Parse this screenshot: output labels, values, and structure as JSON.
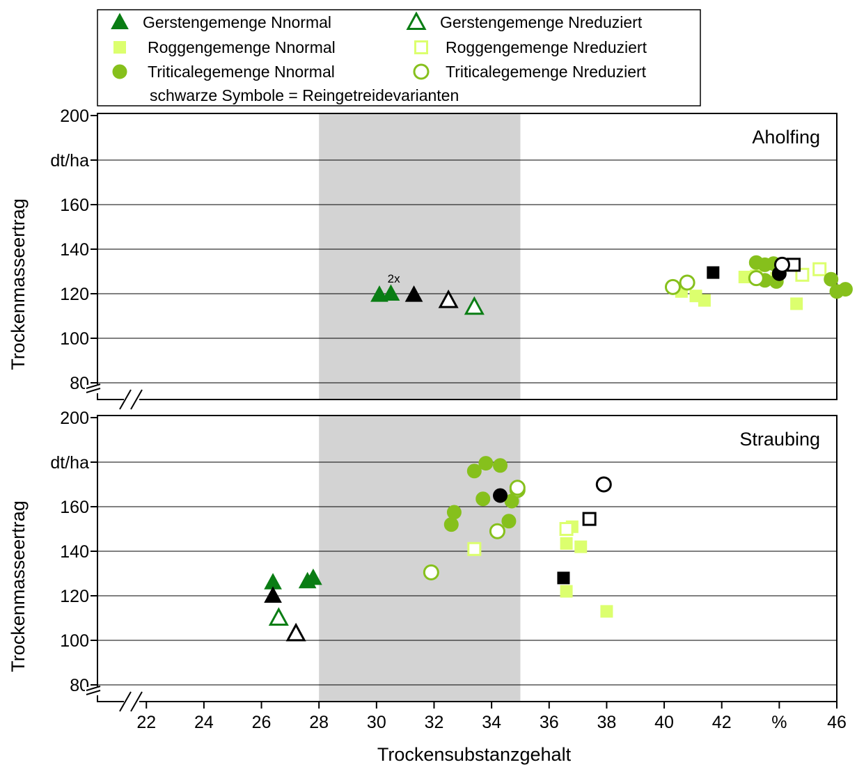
{
  "chart_data": {
    "type": "scatter",
    "xlabel": "Trockensubstanzgehalt",
    "x_unit": "%",
    "x_ticks": [
      22,
      24,
      26,
      28,
      30,
      32,
      34,
      36,
      38,
      40,
      42,
      46
    ],
    "xlim": [
      20.3,
      46
    ],
    "x_axis_break": true,
    "highlight_band": {
      "x_from": 28,
      "x_to": 35,
      "color": "#d3d3d3"
    },
    "grid": "horizontal",
    "legend": {
      "placement": "top",
      "entries": [
        {
          "label": "Gerstengemenge Nnormal",
          "marker": "triangle",
          "filled": true,
          "color": "#0a7d14"
        },
        {
          "label": "Gerstengemenge Nreduziert",
          "marker": "triangle",
          "filled": false,
          "color": "#0a7d14"
        },
        {
          "label": "Roggengemenge Nnormal",
          "marker": "square",
          "filled": true,
          "color": "#dcff6e"
        },
        {
          "label": "Roggengemenge Nreduziert",
          "marker": "square",
          "filled": false,
          "color": "#dcff6e"
        },
        {
          "label": "Triticalegemenge Nnormal",
          "marker": "circle",
          "filled": true,
          "color": "#86c01c"
        },
        {
          "label": "Triticalegemenge Nreduziert",
          "marker": "circle",
          "filled": false,
          "color": "#86c01c"
        }
      ],
      "note": "schwarze Symbole = Reingetreidevarianten"
    },
    "panels": [
      {
        "title": "Aholfing",
        "ylabel": "Trockenmasseertrag",
        "y_unit": "dt/ha",
        "y_ticks": [
          80,
          100,
          120,
          140,
          160,
          200
        ],
        "ylim": [
          72,
          200
        ],
        "y_axis_break": true,
        "annotations": [
          {
            "text": "2x",
            "x": 30.6,
            "y": 125
          }
        ],
        "series": [
          {
            "name": "Gerstengemenge Nnormal",
            "points": [
              [
                30.1,
                119.5
              ],
              [
                30.5,
                120
              ]
            ]
          },
          {
            "name": "Gerstengemenge Nreduziert",
            "points": [
              [
                33.4,
                114
              ]
            ]
          },
          {
            "name": "Roggengemenge Nnormal",
            "points": [
              [
                40.6,
                121
              ],
              [
                41.1,
                119
              ],
              [
                41.4,
                117
              ],
              [
                42.8,
                127.5
              ],
              [
                43.2,
                128
              ],
              [
                43.9,
                127
              ],
              [
                44.6,
                115.5
              ]
            ]
          },
          {
            "name": "Roggengemenge Nreduziert",
            "points": [
              [
                44.8,
                128.5
              ],
              [
                45.4,
                131
              ]
            ]
          },
          {
            "name": "Triticalegemenge Nnormal",
            "points": [
              [
                43.2,
                134
              ],
              [
                43.5,
                133
              ],
              [
                43.8,
                133.5
              ],
              [
                43.5,
                126
              ],
              [
                43.9,
                125.5
              ],
              [
                44.0,
                130
              ],
              [
                45.8,
                126.5
              ],
              [
                46.0,
                121
              ],
              [
                46.3,
                122
              ]
            ]
          },
          {
            "name": "Triticalegemenge Nreduziert",
            "points": [
              [
                40.3,
                123
              ],
              [
                40.8,
                125
              ],
              [
                43.2,
                127
              ]
            ]
          },
          {
            "name": "Reingetreide Gerste Nnormal",
            "points": [
              [
                31.3,
                119.5
              ]
            ]
          },
          {
            "name": "Reingetreide Gerste Nreduziert",
            "points": [
              [
                32.5,
                117
              ]
            ]
          },
          {
            "name": "Reingetreide Roggen Nnormal",
            "points": [
              [
                41.7,
                129.5
              ]
            ]
          },
          {
            "name": "Reingetreide Roggen Nreduziert",
            "points": [
              [
                44.5,
                133
              ]
            ]
          },
          {
            "name": "Reingetreide Triticale Nnormal",
            "points": [
              [
                44.0,
                129
              ]
            ]
          },
          {
            "name": "Reingetreide Triticale Nreduziert",
            "points": [
              [
                44.1,
                133
              ]
            ]
          }
        ]
      },
      {
        "title": "Straubing",
        "ylabel": "Trockenmasseertrag",
        "y_unit": "dt/ha",
        "y_ticks": [
          80,
          100,
          120,
          140,
          160,
          200
        ],
        "ylim": [
          72,
          200
        ],
        "y_axis_break": true,
        "annotations": [],
        "series": [
          {
            "name": "Gerstengemenge Nnormal",
            "points": [
              [
                26.4,
                126
              ],
              [
                27.6,
                126.5
              ],
              [
                27.8,
                128
              ]
            ]
          },
          {
            "name": "Gerstengemenge Nreduziert",
            "points": [
              [
                26.6,
                110
              ]
            ]
          },
          {
            "name": "Roggengemenge Nnormal",
            "points": [
              [
                36.6,
                143.5
              ],
              [
                36.8,
                151
              ],
              [
                37.1,
                142
              ],
              [
                36.6,
                122
              ],
              [
                38.0,
                113
              ]
            ]
          },
          {
            "name": "Roggengemenge Nreduziert",
            "points": [
              [
                33.4,
                141
              ],
              [
                36.6,
                150
              ]
            ]
          },
          {
            "name": "Triticalegemenge Nnormal",
            "points": [
              [
                33.4,
                176
              ],
              [
                33.8,
                179.5
              ],
              [
                34.3,
                178.5
              ],
              [
                32.6,
                152
              ],
              [
                32.7,
                157.5
              ],
              [
                33.7,
                163.5
              ],
              [
                34.6,
                153.5
              ],
              [
                34.7,
                162.5
              ]
            ]
          },
          {
            "name": "Triticalegemenge Nreduziert",
            "points": [
              [
                31.9,
                130.5
              ],
              [
                34.2,
                149
              ],
              [
                34.9,
                167.5
              ],
              [
                34.9,
                168.5
              ]
            ]
          },
          {
            "name": "Reingetreide Gerste Nnormal",
            "points": [
              [
                26.4,
                120
              ]
            ]
          },
          {
            "name": "Reingetreide Gerste Nreduziert",
            "points": [
              [
                27.2,
                103
              ]
            ]
          },
          {
            "name": "Reingetreide Roggen Nnormal",
            "points": [
              [
                36.5,
                128
              ]
            ]
          },
          {
            "name": "Reingetreide Roggen Nreduziert",
            "points": [
              [
                37.4,
                154.5
              ]
            ]
          },
          {
            "name": "Reingetreide Triticale Nnormal",
            "points": [
              [
                34.3,
                165
              ]
            ]
          },
          {
            "name": "Reingetreide Triticale Nreduziert",
            "points": [
              [
                37.9,
                170
              ]
            ]
          }
        ]
      }
    ]
  }
}
